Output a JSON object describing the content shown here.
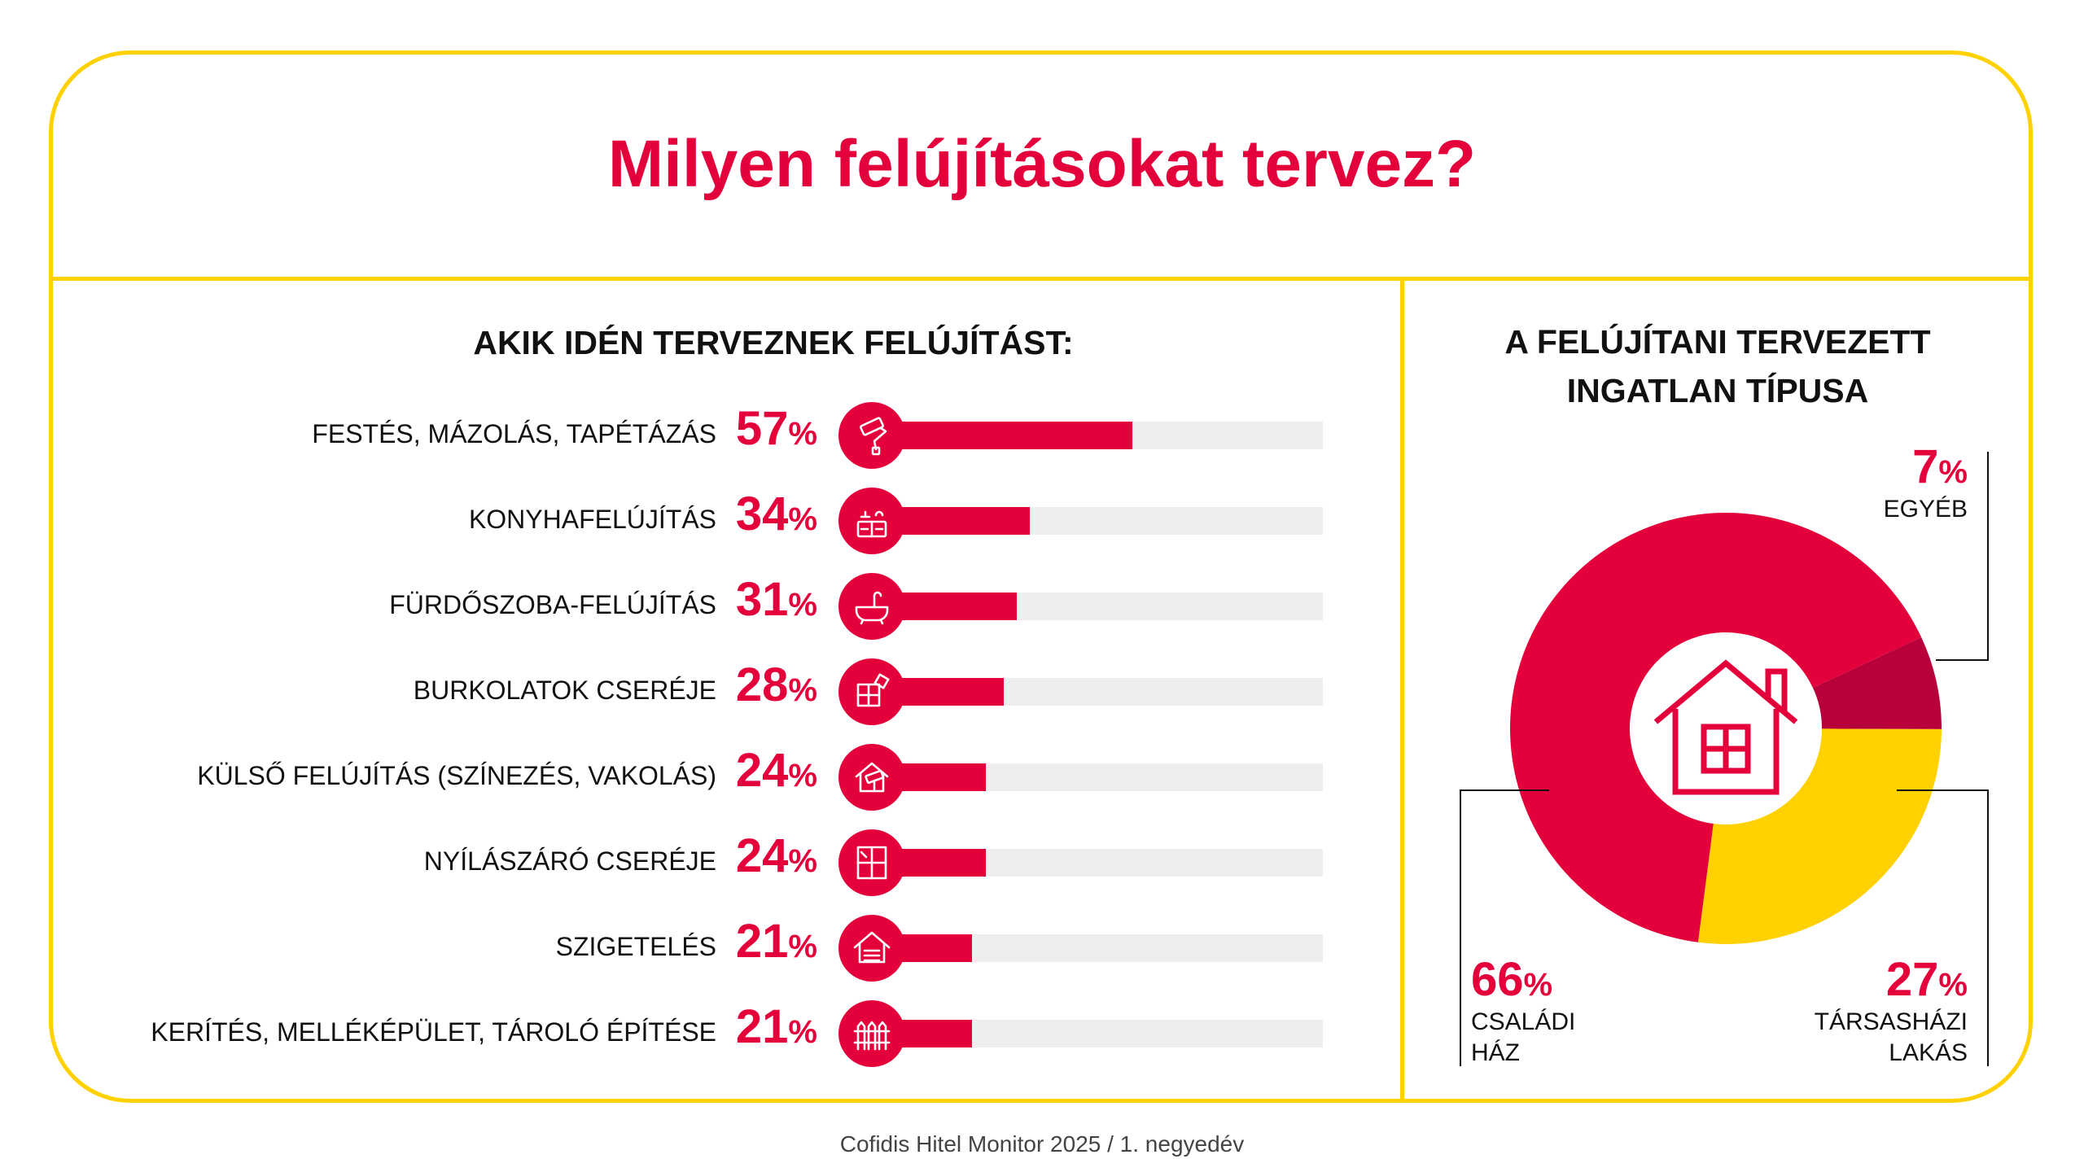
{
  "header": {
    "title": "Milyen felújításokat tervez?"
  },
  "left_panel": {
    "heading": "AKIK IDÉN TERVEZNEK FELÚJÍTÁST:"
  },
  "right_panel": {
    "heading_line1": "A FELÚJÍTANI TERVEZETT",
    "heading_line2": "INGATLAN TÍPUSA"
  },
  "percent_sign": "%",
  "colors": {
    "accent_red": "#E4003A",
    "dark_red": "#B8003B",
    "yellow": "#FFD100",
    "track_gray": "#EEEEEE"
  },
  "chart_data": [
    {
      "type": "bar",
      "orientation": "horizontal",
      "xlim": [
        0,
        100
      ],
      "grid": false,
      "categories": [
        "FESTÉS, MÁZOLÁS, TAPÉTÁZÁS",
        "KONYHAFELÚJÍTÁS",
        "FÜRDŐSZOBA-FELÚJÍTÁS",
        "BURKOLATOK CSERÉJE",
        "KÜLSŐ FELÚJÍTÁS (SZÍNEZÉS, VAKOLÁS)",
        "NYÍLÁSZÁRÓ CSERÉJE",
        "SZIGETELÉS",
        "KERÍTÉS, MELLÉKÉPÜLET, TÁROLÓ ÉPÍTÉSE"
      ],
      "values": [
        57,
        34,
        31,
        28,
        24,
        24,
        21,
        21
      ],
      "icons": [
        "paint-roller-icon",
        "kitchen-icon",
        "bathtub-icon",
        "tiles-icon",
        "house-painting-icon",
        "window-icon",
        "insulation-house-icon",
        "fence-icon"
      ]
    },
    {
      "type": "pie",
      "donut": true,
      "center_icon": "house-icon",
      "slices": [
        {
          "label": "EGYÉB",
          "value": 7,
          "color": "#B8003B"
        },
        {
          "label_line1": "TÁRSASHÁZI",
          "label_line2": "LAKÁS",
          "value": 27,
          "color": "#FFD100"
        },
        {
          "label_line1": "CSALÁDI",
          "label_line2": "HÁZ",
          "value": 66,
          "color": "#E4003A"
        }
      ]
    }
  ],
  "footer": {
    "source": "Cofidis Hitel Monitor 2025 / 1. negyedév"
  }
}
